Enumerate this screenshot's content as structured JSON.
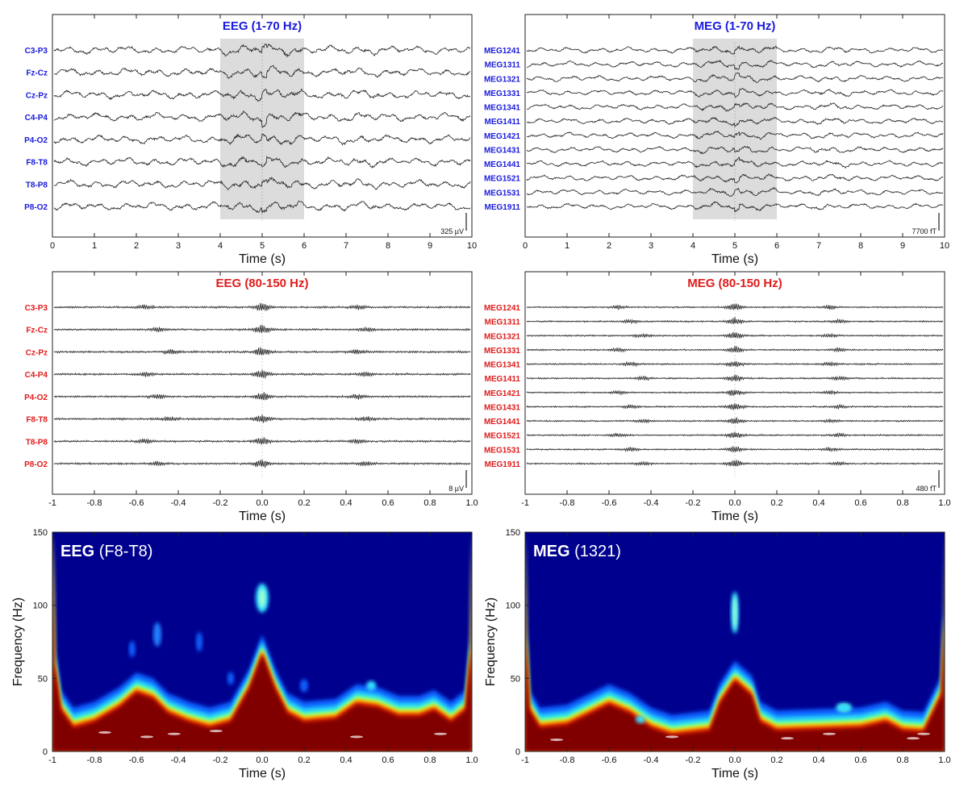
{
  "colors": {
    "low_band_label": "#1a1adc",
    "high_band_label": "#e01b1b",
    "shade": "#dcdcdc",
    "trace": "#222222"
  },
  "chart_data": [
    {
      "id": "eeg_low",
      "type": "line",
      "title": "EEG (1-70 Hz)",
      "title_color": "#1a1adc",
      "xlabel": "Time (s)",
      "xlim": [
        0,
        10
      ],
      "xticks": [
        "0",
        "1",
        "2",
        "3",
        "4",
        "5",
        "6",
        "7",
        "8",
        "9",
        "10"
      ],
      "channels": [
        "C3-P3",
        "Fz-Cz",
        "Cz-Pz",
        "C4-P4",
        "P4-O2",
        "F8-T8",
        "T8-P8",
        "P8-O2"
      ],
      "shaded_interval": [
        4,
        6
      ],
      "scale_bar": "325 µV",
      "signal": "low"
    },
    {
      "id": "meg_low",
      "type": "line",
      "title": "MEG (1-70 Hz)",
      "title_color": "#1a1adc",
      "xlabel": "Time (s)",
      "xlim": [
        0,
        10
      ],
      "xticks": [
        "0",
        "1",
        "2",
        "3",
        "4",
        "5",
        "6",
        "7",
        "8",
        "9",
        "10"
      ],
      "channels": [
        "MEG1241",
        "MEG1311",
        "MEG1321",
        "MEG1331",
        "MEG1341",
        "MEG1411",
        "MEG1421",
        "MEG1431",
        "MEG1441",
        "MEG1521",
        "MEG1531",
        "MEG1911"
      ],
      "shaded_interval": [
        4,
        6
      ],
      "scale_bar": "7700 fT",
      "signal": "low"
    },
    {
      "id": "eeg_high",
      "type": "line",
      "title": "EEG (80-150 Hz)",
      "title_color": "#e01b1b",
      "xlabel": "Time (s)",
      "xlim": [
        -1,
        1
      ],
      "xticks": [
        "-1",
        "-0.8",
        "-0.6",
        "-0.4",
        "-0.2",
        "0.0",
        "0.2",
        "0.4",
        "0.6",
        "0.8",
        "1.0"
      ],
      "channels": [
        "C3-P3",
        "Fz-Cz",
        "Cz-Pz",
        "C4-P4",
        "P4-O2",
        "F8-T8",
        "T8-P8",
        "P8-O2"
      ],
      "scale_bar": "8 µV",
      "signal": "high"
    },
    {
      "id": "meg_high",
      "type": "line",
      "title": "MEG (80-150 Hz)",
      "title_color": "#e01b1b",
      "xlabel": "Time (s)",
      "xlim": [
        -1,
        1
      ],
      "xticks": [
        "-1",
        "-0.8",
        "-0.6",
        "-0.4",
        "-0.2",
        "0.0",
        "0.2",
        "0.4",
        "0.6",
        "0.8",
        "1.0"
      ],
      "channels": [
        "MEG1241",
        "MEG1311",
        "MEG1321",
        "MEG1331",
        "MEG1341",
        "MEG1411",
        "MEG1421",
        "MEG1431",
        "MEG1441",
        "MEG1521",
        "MEG1531",
        "MEG1911"
      ],
      "scale_bar": "480 fT",
      "signal": "high"
    },
    {
      "id": "eeg_tf",
      "type": "heatmap",
      "title_bold": "EEG",
      "title_rest": " (F8-T8)",
      "xlabel": "Time (s)",
      "ylabel": "Frequency (Hz)",
      "xlim": [
        -1,
        1
      ],
      "ylim": [
        0,
        150
      ],
      "xticks": [
        "-1",
        "-0.8",
        "-0.6",
        "-0.4",
        "-0.2",
        "0.0",
        "0.2",
        "0.4",
        "0.6",
        "0.8",
        "1.0"
      ],
      "yticks": [
        "0",
        "50",
        "100",
        "150"
      ]
    },
    {
      "id": "meg_tf",
      "type": "heatmap",
      "title_bold": "MEG",
      "title_rest": " (1321)",
      "xlabel": "Time (s)",
      "ylabel": "Frequency (Hz)",
      "xlim": [
        -1,
        1
      ],
      "ylim": [
        0,
        150
      ],
      "xticks": [
        "-1",
        "-0.8",
        "-0.6",
        "-0.4",
        "-0.2",
        "0.0",
        "0.2",
        "0.4",
        "0.6",
        "0.8",
        "1.0"
      ],
      "yticks": [
        "0",
        "50",
        "100",
        "150"
      ]
    }
  ]
}
